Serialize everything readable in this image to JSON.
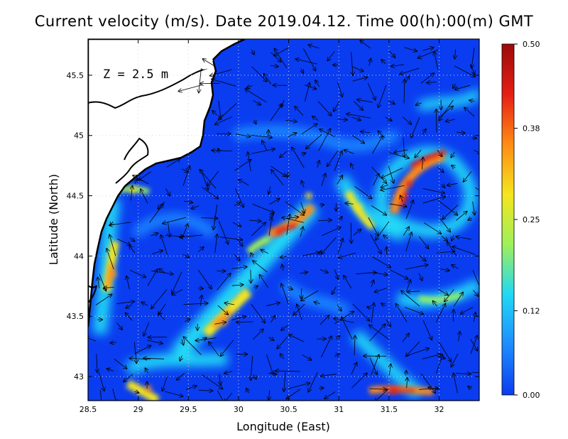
{
  "title": "Current velocity (m/s). Date 2019.04.12. Time 00(h):00(m) GMT",
  "depth_label": "Z = 2.5 m",
  "chart_data": {
    "type": "heatmap",
    "xlabel": "Longitude (East)",
    "ylabel": "Latitude (North)",
    "xlim": [
      28.5,
      32.4
    ],
    "ylim": [
      42.8,
      45.8
    ],
    "x_ticks": [
      "28.5",
      "29",
      "29.5",
      "30",
      "30.5",
      "31",
      "31.5",
      "32"
    ],
    "y_ticks": [
      "43",
      "43.5",
      "44",
      "44.5",
      "45",
      "45.5"
    ],
    "grid": true,
    "colorbar": {
      "min": 0.0,
      "max": 0.5,
      "tick_labels": [
        "0.00",
        "0.12",
        "0.25",
        "0.38",
        "0.50"
      ],
      "colors": [
        "#0a3cf0",
        "#1e8cff",
        "#21d8f5",
        "#9ef05a",
        "#f5e51e",
        "#ff8c14",
        "#e61e14",
        "#9b0a0a"
      ]
    },
    "high_speed_features": [
      {
        "lon": 31.7,
        "lat": 44.6,
        "speed": 0.45
      },
      {
        "lon": 30.4,
        "lat": 44.2,
        "speed": 0.42
      },
      {
        "lon": 29.85,
        "lat": 43.45,
        "speed": 0.36
      },
      {
        "lon": 31.55,
        "lat": 42.88,
        "speed": 0.4
      },
      {
        "lon": 28.75,
        "lat": 43.85,
        "speed": 0.35
      },
      {
        "lon": 29.1,
        "lat": 42.9,
        "speed": 0.38
      },
      {
        "lon": 31.2,
        "lat": 44.4,
        "speed": 0.32
      },
      {
        "lon": 30.7,
        "lat": 44.5,
        "speed": 0.3
      },
      {
        "lon": 28.95,
        "lat": 44.55,
        "speed": 0.26
      }
    ]
  }
}
